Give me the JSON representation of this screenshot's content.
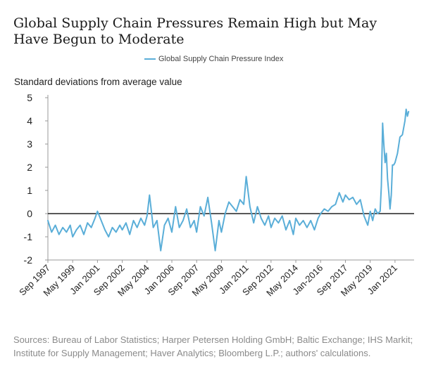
{
  "title": "Global Supply Chain Pressures Remain High but May Have Begun to Moderate",
  "source": "Sources: Bureau of Labor Statistics; Harper Petersen Holding GmbH; Baltic Exchange; IHS Markit; Institute for Supply Management; Haver Analytics; Bloomberg L.P.; authors' calculations.",
  "colors": {
    "series": "#5aaed8",
    "zero_line": "#222222",
    "axis": "#999999"
  },
  "chart_data": {
    "type": "line",
    "title": "Global Supply Chain Pressures Remain High but May Have Begun to Moderate",
    "ylabel": "Standard deviations from average value",
    "xlabel": "",
    "ylim": [
      -2,
      5
    ],
    "yticks": [
      -2,
      -1,
      0,
      1,
      2,
      3,
      4,
      5
    ],
    "x_range": [
      1997.667,
      2022.0
    ],
    "xtick_labels": [
      {
        "label": "Sep 1997",
        "x": 1997.667
      },
      {
        "label": "May 1999",
        "x": 1999.333
      },
      {
        "label": "Jan 2001",
        "x": 2001.0
      },
      {
        "label": "Sep 2002",
        "x": 2002.667
      },
      {
        "label": "May 2004",
        "x": 2004.333
      },
      {
        "label": "Jan 2006",
        "x": 2006.0
      },
      {
        "label": "Sep 2007",
        "x": 2007.667
      },
      {
        "label": "May 2009",
        "x": 2009.333
      },
      {
        "label": "Jan 2011",
        "x": 2011.0
      },
      {
        "label": "Sep 2012",
        "x": 2012.667
      },
      {
        "label": "May 2014",
        "x": 2014.333
      },
      {
        "label": "Jan-2016",
        "x": 2016.0
      },
      {
        "label": "Sep 2017",
        "x": 2017.667
      },
      {
        "label": "May 2019",
        "x": 2019.333
      },
      {
        "label": "Jan 2021",
        "x": 2021.0
      }
    ],
    "series": [
      {
        "name": "Global Supply Chain Pressure Index",
        "x": [
          1997.667,
          1997.917,
          1998.167,
          1998.417,
          1998.667,
          1998.917,
          1999.167,
          1999.333,
          1999.583,
          1999.833,
          2000.083,
          2000.333,
          2000.583,
          2000.833,
          2001.0,
          2001.25,
          2001.5,
          2001.75,
          2002.0,
          2002.25,
          2002.5,
          2002.667,
          2002.917,
          2003.167,
          2003.417,
          2003.667,
          2003.917,
          2004.167,
          2004.333,
          2004.5,
          2004.75,
          2005.0,
          2005.25,
          2005.5,
          2005.75,
          2006.0,
          2006.25,
          2006.5,
          2006.75,
          2007.0,
          2007.25,
          2007.5,
          2007.667,
          2007.917,
          2008.167,
          2008.417,
          2008.667,
          2008.917,
          2009.167,
          2009.333,
          2009.583,
          2009.833,
          2010.083,
          2010.333,
          2010.583,
          2010.833,
          2011.0,
          2011.25,
          2011.5,
          2011.75,
          2012.0,
          2012.25,
          2012.5,
          2012.667,
          2012.917,
          2013.167,
          2013.417,
          2013.667,
          2013.917,
          2014.167,
          2014.333,
          2014.583,
          2014.833,
          2015.083,
          2015.333,
          2015.583,
          2015.833,
          2016.0,
          2016.25,
          2016.5,
          2016.75,
          2017.0,
          2017.25,
          2017.5,
          2017.667,
          2017.917,
          2018.167,
          2018.417,
          2018.667,
          2018.917,
          2019.167,
          2019.333,
          2019.5,
          2019.667,
          2019.833,
          2020.0,
          2020.083,
          2020.167,
          2020.25,
          2020.333,
          2020.417,
          2020.5,
          2020.583,
          2020.667,
          2020.75,
          2020.833,
          2020.917,
          2021.0,
          2021.167,
          2021.333,
          2021.5,
          2021.667,
          2021.75,
          2021.833,
          2021.917
        ],
        "values": [
          -0.3,
          -0.8,
          -0.5,
          -0.9,
          -0.6,
          -0.8,
          -0.5,
          -1.0,
          -0.7,
          -0.5,
          -0.9,
          -0.4,
          -0.6,
          -0.2,
          0.1,
          -0.3,
          -0.7,
          -1.0,
          -0.6,
          -0.8,
          -0.5,
          -0.7,
          -0.4,
          -0.9,
          -0.3,
          -0.6,
          -0.2,
          -0.5,
          -0.1,
          0.8,
          -0.6,
          -0.3,
          -1.6,
          -0.5,
          -0.2,
          -0.8,
          0.3,
          -0.6,
          -0.3,
          0.2,
          -0.6,
          -0.3,
          -0.8,
          0.3,
          -0.1,
          0.7,
          -0.4,
          -1.6,
          -0.3,
          -0.8,
          0.0,
          0.5,
          0.3,
          0.1,
          0.6,
          0.4,
          1.6,
          0.3,
          -0.4,
          0.3,
          -0.2,
          -0.5,
          -0.1,
          -0.6,
          -0.2,
          -0.4,
          -0.1,
          -0.7,
          -0.3,
          -0.9,
          -0.2,
          -0.5,
          -0.3,
          -0.6,
          -0.3,
          -0.7,
          -0.2,
          0.0,
          0.2,
          0.1,
          0.3,
          0.4,
          0.9,
          0.5,
          0.8,
          0.6,
          0.7,
          0.4,
          0.6,
          -0.1,
          -0.5,
          0.1,
          -0.3,
          0.2,
          0.0,
          0.1,
          1.2,
          3.9,
          3.0,
          2.2,
          2.6,
          1.5,
          0.9,
          0.2,
          0.8,
          2.1,
          2.1,
          2.2,
          2.6,
          3.3,
          3.4,
          4.0,
          4.5,
          4.2,
          4.4
        ]
      }
    ]
  }
}
